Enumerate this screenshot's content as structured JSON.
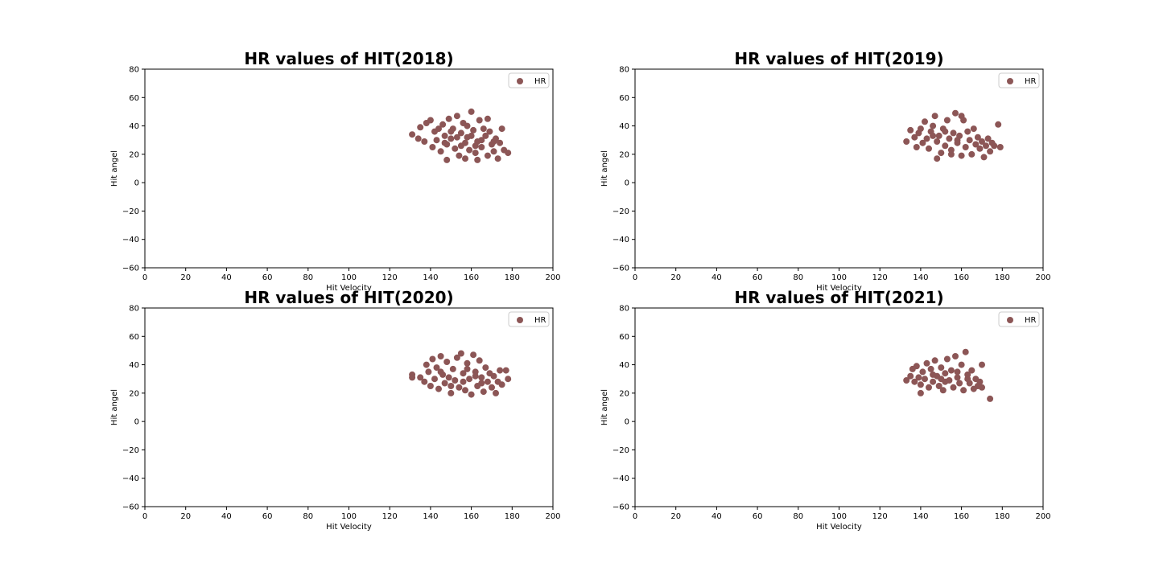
{
  "chart_data": [
    {
      "type": "scatter",
      "title": "HR values of HIT(2018)",
      "xlabel": "Hit Velocity",
      "ylabel": "Hit angel",
      "xlim": [
        0,
        200
      ],
      "ylim": [
        -60,
        80
      ],
      "xticks": [
        "0",
        "20",
        "40",
        "60",
        "80",
        "100",
        "120",
        "140",
        "160",
        "180",
        "200"
      ],
      "yticks": [
        "80",
        "60",
        "40",
        "20",
        "0",
        "−20",
        "−40",
        "−60"
      ],
      "legend_position": "top-right",
      "grid": false,
      "series": [
        {
          "name": "HR",
          "color": "#8c5656",
          "points": [
            [
              131,
              34
            ],
            [
              134,
              31
            ],
            [
              135,
              39
            ],
            [
              137,
              29
            ],
            [
              138,
              42
            ],
            [
              140,
              44
            ],
            [
              141,
              25
            ],
            [
              142,
              36
            ],
            [
              143,
              30
            ],
            [
              144,
              38
            ],
            [
              145,
              22
            ],
            [
              146,
              41
            ],
            [
              147,
              33
            ],
            [
              148,
              27
            ],
            [
              149,
              45
            ],
            [
              150,
              31
            ],
            [
              151,
              38
            ],
            [
              152,
              24
            ],
            [
              153,
              47
            ],
            [
              154,
              19
            ],
            [
              155,
              35
            ],
            [
              156,
              42
            ],
            [
              157,
              28
            ],
            [
              158,
              32
            ],
            [
              159,
              23
            ],
            [
              160,
              50
            ],
            [
              161,
              37
            ],
            [
              162,
              21
            ],
            [
              163,
              29
            ],
            [
              164,
              44
            ],
            [
              165,
              25
            ],
            [
              166,
              38
            ],
            [
              167,
              33
            ],
            [
              168,
              19
            ],
            [
              169,
              36
            ],
            [
              170,
              27
            ],
            [
              171,
              22
            ],
            [
              172,
              31
            ],
            [
              173,
              17
            ],
            [
              174,
              28
            ],
            [
              175,
              38
            ],
            [
              176,
              23
            ],
            [
              178,
              21
            ],
            [
              148,
              16
            ],
            [
              157,
              17
            ],
            [
              163,
              16
            ],
            [
              168,
              45
            ],
            [
              171,
              29
            ],
            [
              150,
              36
            ],
            [
              155,
              26
            ],
            [
              160,
              33
            ],
            [
              165,
              30
            ],
            [
              158,
              40
            ],
            [
              147,
              28
            ],
            [
              153,
              32
            ],
            [
              162,
              26
            ]
          ]
        }
      ]
    },
    {
      "type": "scatter",
      "title": "HR values of HIT(2019)",
      "xlabel": "Hit Velocity",
      "ylabel": "Hit angel",
      "xlim": [
        0,
        200
      ],
      "ylim": [
        -60,
        80
      ],
      "xticks": [
        "0",
        "20",
        "40",
        "60",
        "80",
        "100",
        "120",
        "140",
        "160",
        "180",
        "200"
      ],
      "yticks": [
        "80",
        "60",
        "40",
        "20",
        "0",
        "−20",
        "−40",
        "−60"
      ],
      "legend_position": "top-right",
      "grid": false,
      "series": [
        {
          "name": "HR",
          "color": "#8c5656",
          "points": [
            [
              133,
              29
            ],
            [
              135,
              37
            ],
            [
              137,
              32
            ],
            [
              138,
              25
            ],
            [
              139,
              35
            ],
            [
              140,
              38
            ],
            [
              141,
              28
            ],
            [
              142,
              43
            ],
            [
              143,
              31
            ],
            [
              144,
              24
            ],
            [
              145,
              36
            ],
            [
              146,
              40
            ],
            [
              147,
              47
            ],
            [
              148,
              29
            ],
            [
              149,
              33
            ],
            [
              150,
              21
            ],
            [
              151,
              38
            ],
            [
              152,
              26
            ],
            [
              153,
              44
            ],
            [
              154,
              31
            ],
            [
              155,
              23
            ],
            [
              156,
              35
            ],
            [
              157,
              49
            ],
            [
              158,
              28
            ],
            [
              159,
              33
            ],
            [
              160,
              47
            ],
            [
              161,
              44
            ],
            [
              162,
              25
            ],
            [
              163,
              36
            ],
            [
              164,
              30
            ],
            [
              165,
              20
            ],
            [
              166,
              38
            ],
            [
              167,
              27
            ],
            [
              168,
              32
            ],
            [
              169,
              24
            ],
            [
              170,
              29
            ],
            [
              171,
              18
            ],
            [
              172,
              26
            ],
            [
              173,
              31
            ],
            [
              174,
              22
            ],
            [
              175,
              28
            ],
            [
              176,
              26
            ],
            [
              178,
              41
            ],
            [
              179,
              25
            ],
            [
              148,
              17
            ],
            [
              155,
              20
            ],
            [
              160,
              19
            ],
            [
              152,
              36
            ],
            [
              158,
              30
            ],
            [
              146,
              33
            ]
          ]
        }
      ]
    },
    {
      "type": "scatter",
      "title": "HR values of HIT(2020)",
      "xlabel": "Hit Velocity",
      "ylabel": "Hit angel",
      "xlim": [
        0,
        200
      ],
      "ylim": [
        -60,
        80
      ],
      "xticks": [
        "0",
        "20",
        "40",
        "60",
        "80",
        "100",
        "120",
        "140",
        "160",
        "180",
        "200"
      ],
      "yticks": [
        "80",
        "60",
        "40",
        "20",
        "0",
        "−20",
        "−40",
        "−60"
      ],
      "legend_position": "top-right",
      "grid": false,
      "series": [
        {
          "name": "HR",
          "color": "#8c5656",
          "points": [
            [
              131,
              33
            ],
            [
              131,
              31
            ],
            [
              135,
              31
            ],
            [
              137,
              28
            ],
            [
              138,
              40
            ],
            [
              139,
              35
            ],
            [
              140,
              25
            ],
            [
              141,
              44
            ],
            [
              142,
              30
            ],
            [
              143,
              38
            ],
            [
              144,
              23
            ],
            [
              145,
              46
            ],
            [
              146,
              33
            ],
            [
              147,
              27
            ],
            [
              148,
              42
            ],
            [
              149,
              31
            ],
            [
              150,
              20
            ],
            [
              151,
              37
            ],
            [
              152,
              29
            ],
            [
              153,
              45
            ],
            [
              154,
              24
            ],
            [
              155,
              48
            ],
            [
              156,
              34
            ],
            [
              157,
              22
            ],
            [
              158,
              41
            ],
            [
              159,
              30
            ],
            [
              160,
              19
            ],
            [
              161,
              47
            ],
            [
              162,
              35
            ],
            [
              163,
              25
            ],
            [
              164,
              43
            ],
            [
              165,
              31
            ],
            [
              166,
              21
            ],
            [
              167,
              38
            ],
            [
              168,
              28
            ],
            [
              169,
              34
            ],
            [
              170,
              24
            ],
            [
              171,
              32
            ],
            [
              172,
              20
            ],
            [
              173,
              28
            ],
            [
              174,
              36
            ],
            [
              175,
              26
            ],
            [
              177,
              36
            ],
            [
              178,
              30
            ],
            [
              150,
              25
            ],
            [
              156,
              28
            ],
            [
              162,
              32
            ],
            [
              145,
              35
            ],
            [
              158,
              37
            ],
            [
              165,
              27
            ]
          ]
        }
      ]
    },
    {
      "type": "scatter",
      "title": "HR values of HIT(2021)",
      "xlabel": "Hit Velocity",
      "ylabel": "Hit angel",
      "xlim": [
        0,
        200
      ],
      "ylim": [
        -60,
        80
      ],
      "xticks": [
        "0",
        "20",
        "40",
        "60",
        "80",
        "100",
        "120",
        "140",
        "160",
        "180",
        "200"
      ],
      "yticks": [
        "80",
        "60",
        "40",
        "20",
        "0",
        "−20",
        "−40",
        "−60"
      ],
      "legend_position": "top-right",
      "grid": false,
      "series": [
        {
          "name": "HR",
          "color": "#8c5656",
          "points": [
            [
              133,
              29
            ],
            [
              135,
              32
            ],
            [
              136,
              37
            ],
            [
              137,
              28
            ],
            [
              138,
              39
            ],
            [
              139,
              31
            ],
            [
              140,
              26
            ],
            [
              141,
              35
            ],
            [
              142,
              30
            ],
            [
              143,
              41
            ],
            [
              144,
              24
            ],
            [
              145,
              37
            ],
            [
              146,
              28
            ],
            [
              147,
              43
            ],
            [
              148,
              32
            ],
            [
              149,
              25
            ],
            [
              150,
              38
            ],
            [
              151,
              22
            ],
            [
              152,
              34
            ],
            [
              153,
              44
            ],
            [
              154,
              29
            ],
            [
              155,
              36
            ],
            [
              156,
              24
            ],
            [
              157,
              46
            ],
            [
              158,
              31
            ],
            [
              159,
              27
            ],
            [
              160,
              40
            ],
            [
              161,
              22
            ],
            [
              162,
              49
            ],
            [
              163,
              33
            ],
            [
              164,
              27
            ],
            [
              165,
              36
            ],
            [
              166,
              23
            ],
            [
              167,
              30
            ],
            [
              168,
              25
            ],
            [
              169,
              28
            ],
            [
              170,
              40
            ],
            [
              170,
              24
            ],
            [
              174,
              16
            ],
            [
              140,
              20
            ],
            [
              150,
              30
            ],
            [
              158,
              35
            ],
            [
              152,
              28
            ],
            [
              146,
              33
            ],
            [
              163,
              30
            ]
          ]
        }
      ]
    }
  ]
}
